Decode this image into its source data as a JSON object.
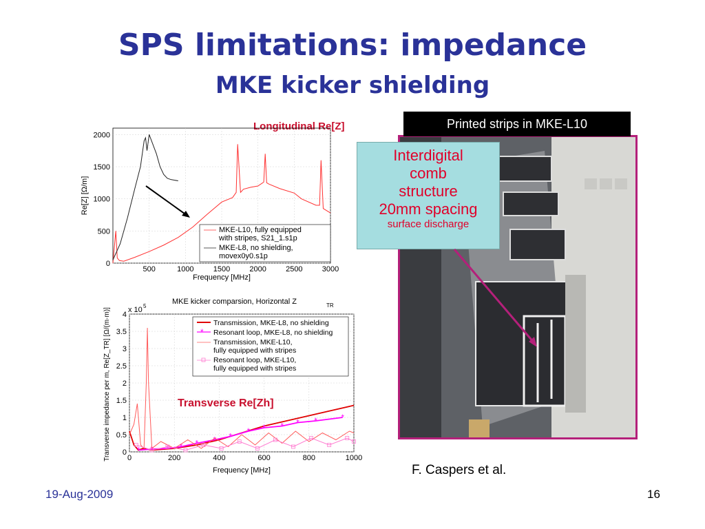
{
  "slide": {
    "title": "SPS limitations: impedance",
    "subtitle": "MKE kicker shielding",
    "date": "19-Aug-2009",
    "page": "16",
    "author": "F. Caspers et al."
  },
  "photo": {
    "caption": "Printed strips in MKE-L10",
    "callout": {
      "line1": "Interdigital",
      "line2": "comb",
      "line3": "structure",
      "line4": "20mm spacing",
      "line5": "surface discharge"
    },
    "colors": {
      "border": "#b4207a",
      "arrow": "#b4207a",
      "callout_bg": "#a5dde0",
      "callout_text": "#e0002a"
    }
  },
  "chart_data": [
    {
      "type": "line",
      "title": "Longitudinal Re[Z]",
      "xlabel": "Frequency [MHz]",
      "ylabel": "Re[Z] [Ω/m]",
      "xlim": [
        0,
        3000
      ],
      "ylim": [
        0,
        2100
      ],
      "xticks": [
        "500",
        "1000",
        "1500",
        "2000",
        "2500",
        "3000"
      ],
      "yticks": [
        "0",
        "500",
        "1000",
        "1500",
        "2000"
      ],
      "legend": {
        "placement": "bottom-right",
        "entries": [
          "MKE-L10, fully equipped",
          "with stripes, S21_1.s1p",
          "MKE-L8, no shielding,",
          "movex0y0.s1p"
        ]
      },
      "series": [
        {
          "color": "#ff3030",
          "x": [
            0,
            40,
            60,
            90,
            150,
            300,
            500,
            700,
            900,
            1100,
            1300,
            1500,
            1650,
            1700,
            1720,
            1760,
            1800,
            1900,
            2000,
            2080,
            2100,
            2120,
            2150,
            2300,
            2500,
            2600,
            2800,
            2850,
            2870,
            2900,
            3000
          ],
          "y": [
            0,
            500,
            80,
            40,
            30,
            90,
            180,
            280,
            400,
            560,
            760,
            950,
            1020,
            1100,
            1850,
            1100,
            1150,
            1180,
            1200,
            1260,
            1700,
            1250,
            1230,
            1160,
            1090,
            1000,
            900,
            900,
            1600,
            850,
            780
          ]
        },
        {
          "color": "#222222",
          "x": [
            0,
            100,
            200,
            300,
            380,
            430,
            450,
            470,
            500,
            550,
            600,
            650,
            700,
            750,
            800,
            900
          ],
          "y": [
            50,
            300,
            700,
            1150,
            1500,
            1900,
            1950,
            1750,
            2000,
            1850,
            1700,
            1500,
            1380,
            1320,
            1300,
            1280
          ]
        }
      ]
    },
    {
      "type": "line",
      "title": "MKE kicker comparsion, Horizontal Z",
      "title_sub": "TR",
      "annotation": "Transverse Re[Zh]",
      "xlabel": "Frequency [MHz]",
      "ylabel": "Transverse impedance per m, Re[Z_TR] [Ω/(m·m)]",
      "exponent_label": "x 10",
      "exponent_sup": "5",
      "xlim": [
        0,
        1000
      ],
      "ylim": [
        0,
        4
      ],
      "xticks": [
        "0",
        "200",
        "400",
        "600",
        "800",
        "1000"
      ],
      "yticks": [
        "0",
        "0.5",
        "1",
        "1.5",
        "2",
        "2.5",
        "3",
        "3.5",
        "4"
      ],
      "legend": {
        "placement": "top-right",
        "entries": [
          "Transmission, MKE-L8, no shielding",
          "Resonant loop, MKE-L8, no shielding",
          "Transmission, MKE-L10,",
          "fully equipped with stripes",
          "Resonant loop, MKE-L10,",
          "fully equipped with stripes"
        ]
      },
      "series": [
        {
          "color": "#e00000",
          "x": [
            0,
            20,
            40,
            60,
            100,
            200,
            300,
            400,
            500,
            600,
            700,
            800,
            900,
            1000
          ],
          "y": [
            0.6,
            0.2,
            0.05,
            0.1,
            0.05,
            0.1,
            0.2,
            0.35,
            0.55,
            0.75,
            0.9,
            1.05,
            1.2,
            1.35
          ]
        },
        {
          "color": "#ff00ff",
          "x": [
            40,
            100,
            170,
            230,
            300,
            380,
            450,
            530,
            600,
            680,
            750,
            830,
            950
          ],
          "y": [
            0.05,
            0.08,
            0.1,
            0.15,
            0.25,
            0.35,
            0.45,
            0.6,
            0.7,
            0.75,
            0.85,
            0.9,
            1.0
          ]
        },
        {
          "color": "#ff5a5a",
          "x": [
            0,
            20,
            35,
            50,
            65,
            75,
            80,
            85,
            100,
            140,
            200,
            260,
            320,
            380,
            440,
            500,
            560,
            620,
            680,
            740,
            800,
            860,
            920,
            980,
            1000
          ],
          "y": [
            0.5,
            0.8,
            1.4,
            0.2,
            0.1,
            2.0,
            3.6,
            2.0,
            0.1,
            0.3,
            0.1,
            0.35,
            0.1,
            0.4,
            0.15,
            0.5,
            0.2,
            0.55,
            0.25,
            0.6,
            0.3,
            0.55,
            0.35,
            0.6,
            0.55
          ]
        },
        {
          "color": "#ff7ad0",
          "x": [
            30,
            100,
            170,
            250,
            330,
            410,
            490,
            570,
            650,
            730,
            810,
            890,
            970,
            1000
          ],
          "y": [
            0.2,
            0.05,
            0.15,
            0.05,
            0.2,
            0.1,
            0.3,
            0.1,
            0.35,
            0.15,
            0.4,
            0.2,
            0.4,
            0.3
          ]
        }
      ]
    }
  ]
}
